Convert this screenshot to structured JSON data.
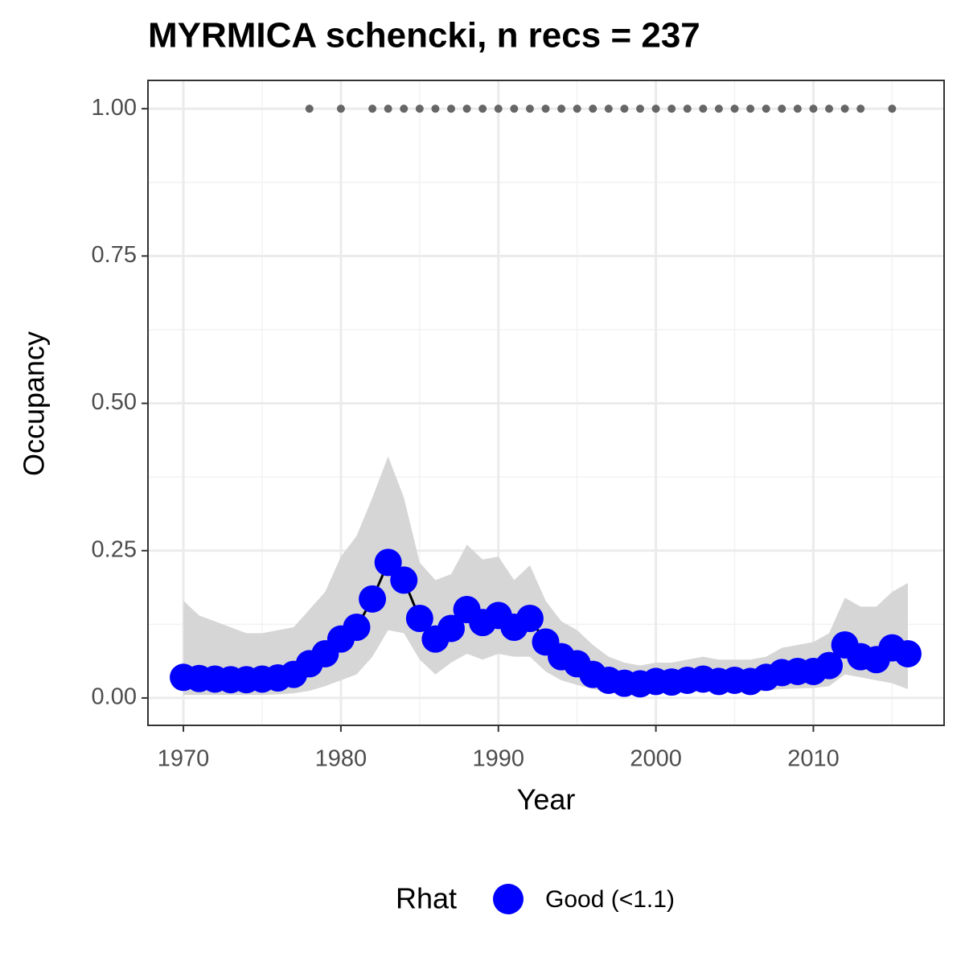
{
  "chart_data": {
    "type": "line",
    "title": "MYRMICA schencki, n recs = 237",
    "xlabel": "Year",
    "ylabel": "Occupancy",
    "legend_title": "Rhat",
    "x": [
      1970,
      1971,
      1972,
      1973,
      1974,
      1975,
      1976,
      1977,
      1978,
      1979,
      1980,
      1981,
      1982,
      1983,
      1984,
      1985,
      1986,
      1987,
      1988,
      1989,
      1990,
      1991,
      1992,
      1993,
      1994,
      1995,
      1996,
      1997,
      1998,
      1999,
      2000,
      2001,
      2002,
      2003,
      2004,
      2005,
      2006,
      2007,
      2008,
      2009,
      2010,
      2011,
      2012,
      2013,
      2014,
      2015,
      2016
    ],
    "series": [
      {
        "name": "Good (<1.1)",
        "color": "#0000ff",
        "values": [
          0.035,
          0.033,
          0.032,
          0.031,
          0.031,
          0.032,
          0.034,
          0.04,
          0.058,
          0.075,
          0.1,
          0.12,
          0.168,
          0.23,
          0.2,
          0.135,
          0.1,
          0.118,
          0.15,
          0.128,
          0.14,
          0.12,
          0.135,
          0.095,
          0.07,
          0.058,
          0.04,
          0.03,
          0.025,
          0.024,
          0.028,
          0.027,
          0.03,
          0.032,
          0.028,
          0.03,
          0.028,
          0.035,
          0.043,
          0.045,
          0.045,
          0.055,
          0.09,
          0.07,
          0.065,
          0.085,
          0.075
        ]
      }
    ],
    "line_color": "#000000",
    "band": {
      "color": "#d6d6d6",
      "upper": [
        0.165,
        0.14,
        0.13,
        0.12,
        0.11,
        0.11,
        0.115,
        0.12,
        0.15,
        0.18,
        0.24,
        0.275,
        0.34,
        0.41,
        0.34,
        0.23,
        0.2,
        0.21,
        0.26,
        0.235,
        0.24,
        0.2,
        0.225,
        0.165,
        0.13,
        0.115,
        0.09,
        0.07,
        0.06,
        0.055,
        0.06,
        0.06,
        0.065,
        0.07,
        0.065,
        0.065,
        0.065,
        0.07,
        0.085,
        0.09,
        0.095,
        0.11,
        0.17,
        0.155,
        0.155,
        0.18,
        0.195
      ],
      "lower": [
        0.005,
        0.005,
        0.005,
        0.005,
        0.005,
        0.005,
        0.006,
        0.008,
        0.012,
        0.02,
        0.03,
        0.04,
        0.07,
        0.115,
        0.11,
        0.065,
        0.04,
        0.06,
        0.075,
        0.065,
        0.075,
        0.07,
        0.07,
        0.045,
        0.03,
        0.022,
        0.015,
        0.01,
        0.008,
        0.008,
        0.009,
        0.009,
        0.01,
        0.011,
        0.01,
        0.01,
        0.01,
        0.012,
        0.015,
        0.016,
        0.017,
        0.02,
        0.04,
        0.035,
        0.03,
        0.025,
        0.015
      ]
    },
    "records": {
      "color": "#666666",
      "x": [
        1978,
        1980,
        1982,
        1983,
        1984,
        1985,
        1986,
        1987,
        1988,
        1989,
        1990,
        1991,
        1992,
        1993,
        1994,
        1995,
        1996,
        1997,
        1998,
        1999,
        2000,
        2001,
        2002,
        2003,
        2004,
        2005,
        2006,
        2007,
        2008,
        2009,
        2010,
        2011,
        2012,
        2013,
        2015
      ],
      "y": [
        1,
        1,
        1,
        1,
        1,
        1,
        1,
        1,
        1,
        1,
        1,
        1,
        1,
        1,
        1,
        1,
        1,
        1,
        1,
        1,
        1,
        1,
        1,
        1,
        1,
        1,
        1,
        1,
        1,
        1,
        1,
        1,
        1,
        1,
        1
      ]
    },
    "xlim": [
      1967.75,
      2018.3
    ],
    "ylim": [
      -0.0465,
      1.048
    ],
    "xticks": [
      1970,
      1980,
      1990,
      2000,
      2010
    ],
    "yticks": [
      {
        "value": 0,
        "label": "0.00"
      },
      {
        "value": 0.25,
        "label": "0.25"
      },
      {
        "value": 0.5,
        "label": "0.50"
      },
      {
        "value": 0.75,
        "label": "0.75"
      },
      {
        "value": 1,
        "label": "1.00"
      }
    ],
    "minor_xticks": [
      1975,
      1985,
      1995,
      2005,
      2015
    ],
    "minor_yticks": [
      0.125,
      0.375,
      0.625,
      0.875
    ],
    "grid": true
  }
}
